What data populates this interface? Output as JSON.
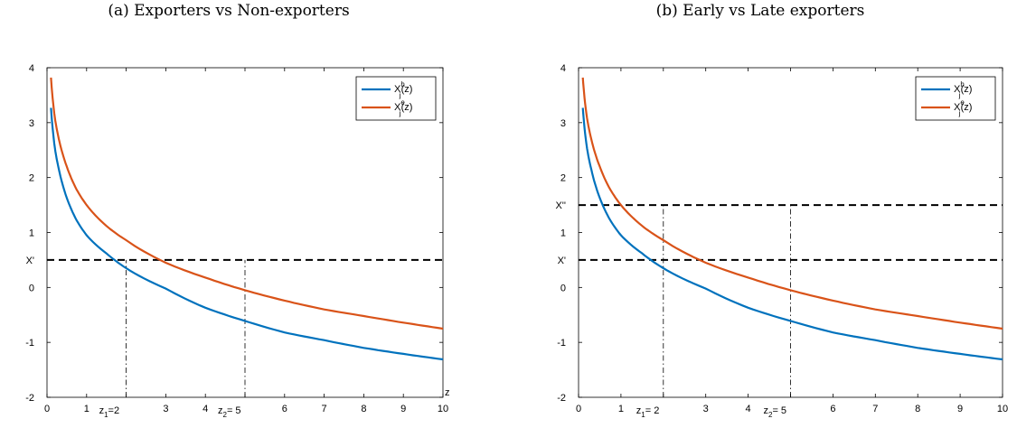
{
  "chart_data": [
    {
      "type": "line",
      "title": "(a) Exporters vs Non-exporters",
      "xlabel": "z",
      "ylabel": "",
      "xlim": [
        0,
        10
      ],
      "ylim": [
        -2,
        4
      ],
      "xticks": [
        0,
        1,
        2,
        3,
        4,
        5,
        6,
        7,
        8,
        9,
        10
      ],
      "yticks": [
        -2,
        -1,
        0,
        1,
        2,
        3,
        4
      ],
      "series": [
        {
          "name": "X_j^h(z)",
          "color": "#0072BD",
          "x": [
            0.1,
            0.2,
            0.3,
            0.5,
            0.75,
            1,
            1.5,
            2,
            3,
            4,
            5,
            6,
            7,
            8,
            9,
            10
          ],
          "y": [
            3.27,
            2.53,
            2.15,
            1.63,
            1.22,
            0.95,
            0.62,
            0.35,
            -0.02,
            -0.37,
            -0.61,
            -0.82,
            -0.96,
            -1.1,
            -1.21,
            -1.31
          ]
        },
        {
          "name": "X_j^e(z)",
          "color": "#D95319",
          "x": [
            0.1,
            0.2,
            0.3,
            0.5,
            0.75,
            1,
            1.5,
            2,
            3,
            4,
            5,
            6,
            7,
            8,
            9,
            10
          ],
          "y": [
            3.82,
            3.08,
            2.7,
            2.2,
            1.78,
            1.5,
            1.12,
            0.86,
            0.45,
            0.18,
            -0.05,
            -0.24,
            -0.4,
            -0.52,
            -0.64,
            -0.75
          ]
        }
      ],
      "hlines": [
        {
          "label": "X'",
          "y": 0.5
        }
      ],
      "vlines": [
        {
          "x": 2,
          "y_to": 0.5
        },
        {
          "x": 5,
          "y_to": 0.5
        }
      ],
      "x_annotations": [
        {
          "main": "z",
          "sub": "1",
          "rest": "=2",
          "x": 2
        },
        {
          "main": "z",
          "sub": "2",
          "rest": "= 5",
          "x": 5
        }
      ],
      "legend": {
        "position": "top-right",
        "entries": [
          {
            "main": "X",
            "sup": "h",
            "sub": "j",
            "rest": "(z)"
          },
          {
            "main": "X",
            "sup": "e",
            "sub": "j",
            "rest": "(z)"
          }
        ]
      }
    },
    {
      "type": "line",
      "title": "(b) Early vs Late exporters",
      "xlabel": "",
      "ylabel": "",
      "xlim": [
        0,
        10
      ],
      "ylim": [
        -2,
        4
      ],
      "xticks": [
        0,
        1,
        2,
        3,
        4,
        5,
        6,
        7,
        8,
        9,
        10
      ],
      "yticks": [
        -2,
        -1,
        0,
        1,
        2,
        3,
        4
      ],
      "series": [
        {
          "name": "X_j^h(z)",
          "color": "#0072BD",
          "x": [
            0.1,
            0.2,
            0.3,
            0.5,
            0.75,
            1,
            1.5,
            2,
            3,
            4,
            5,
            6,
            7,
            8,
            9,
            10
          ],
          "y": [
            3.27,
            2.53,
            2.15,
            1.63,
            1.22,
            0.95,
            0.62,
            0.35,
            -0.02,
            -0.37,
            -0.61,
            -0.82,
            -0.96,
            -1.1,
            -1.21,
            -1.31
          ]
        },
        {
          "name": "X_j^e(z)",
          "color": "#D95319",
          "x": [
            0.1,
            0.2,
            0.3,
            0.5,
            0.75,
            1,
            1.5,
            2,
            3,
            4,
            5,
            6,
            7,
            8,
            9,
            10
          ],
          "y": [
            3.82,
            3.08,
            2.7,
            2.2,
            1.78,
            1.5,
            1.12,
            0.86,
            0.45,
            0.18,
            -0.05,
            -0.24,
            -0.4,
            -0.52,
            -0.64,
            -0.75
          ]
        }
      ],
      "hlines": [
        {
          "label": "X''",
          "y": 1.5
        },
        {
          "label": "X'",
          "y": 0.5
        }
      ],
      "vlines": [
        {
          "x": 2,
          "y_to": 1.5
        },
        {
          "x": 5,
          "y_to": 1.5
        }
      ],
      "x_annotations": [
        {
          "main": "z",
          "sub": "1",
          "rest": "= 2",
          "x": 2
        },
        {
          "main": "z",
          "sub": "2",
          "rest": "= 5",
          "x": 5
        }
      ],
      "legend": {
        "position": "top-right",
        "entries": [
          {
            "main": "X",
            "sup": "h",
            "sub": "j",
            "rest": "(z)"
          },
          {
            "main": "X",
            "sup": "e",
            "sub": "j",
            "rest": "(z)"
          }
        ]
      }
    }
  ]
}
